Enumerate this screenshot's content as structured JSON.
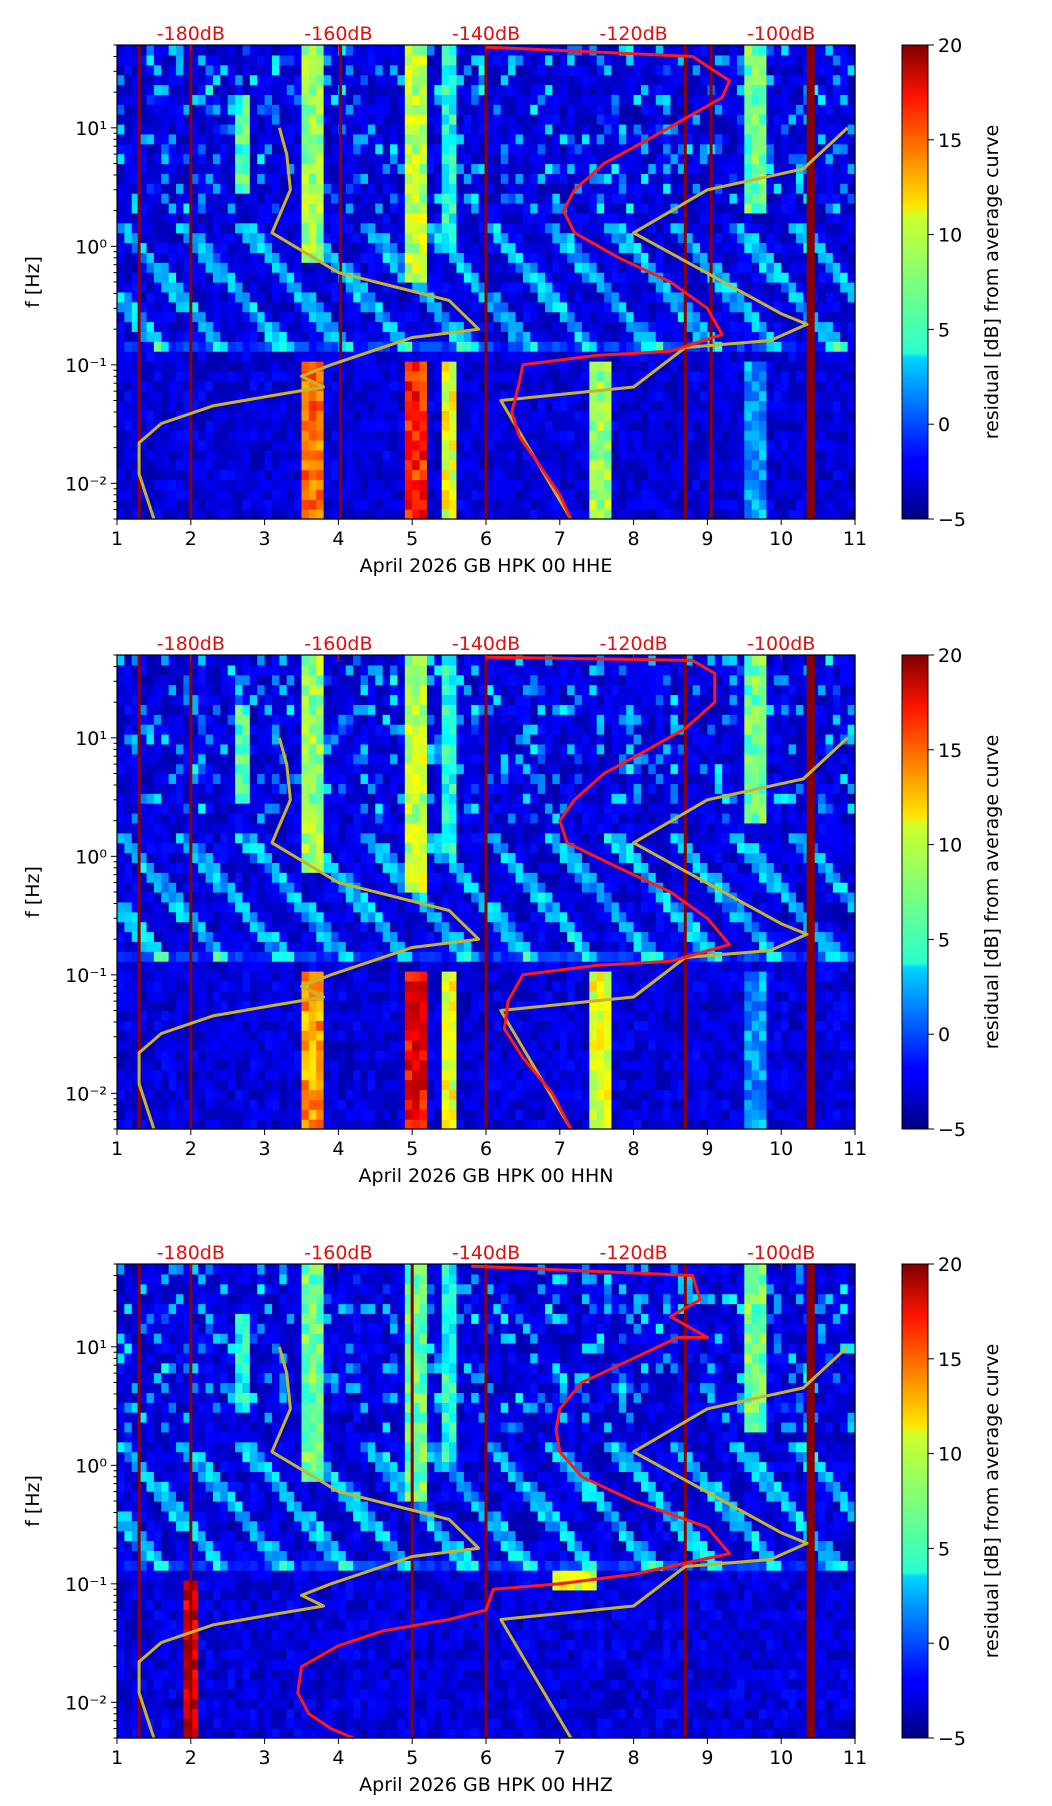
{
  "figure": {
    "colorbar_label": "residual [dB] from average curve",
    "colorbar_ticks": [
      -5,
      0,
      5,
      10,
      15,
      20
    ],
    "colorbar_range": [
      -5,
      20
    ],
    "ylabel": "f [Hz]",
    "y_ticks": [
      {
        "value": 0.01,
        "label": "10⁻²"
      },
      {
        "value": 0.1,
        "label": "10⁻¹"
      },
      {
        "value": 1,
        "label": "10⁰"
      },
      {
        "value": 10,
        "label": "10¹"
      }
    ],
    "x_ticks": [
      1,
      2,
      3,
      4,
      5,
      6,
      7,
      8,
      9,
      10,
      11
    ],
    "db_scale": [
      {
        "x": 2,
        "label": "-180dB"
      },
      {
        "x": 4,
        "label": "-160dB"
      },
      {
        "x": 6,
        "label": "-140dB"
      },
      {
        "x": 8,
        "label": "-120dB"
      },
      {
        "x": 10,
        "label": "-100dB"
      }
    ],
    "xlim": [
      1,
      11
    ],
    "ylim": [
      0.005,
      50
    ]
  },
  "chart_data": [
    {
      "type": "heatmap",
      "title": "April 2026 GB HPK 00 HHE",
      "xlabel": "April 2026 GB HPK 00 HHE",
      "ylabel": "f [Hz]",
      "gap_days": [
        1.3,
        2.0,
        4.03,
        6.0,
        8.7,
        9.05,
        10.4
      ],
      "bands": [
        {
          "x": 2.7,
          "w": 0.15,
          "fmin": 3,
          "fmax": 20,
          "v": 8
        },
        {
          "x": 3.65,
          "w": 0.3,
          "fmin": 0.8,
          "fmax": 50,
          "v": 10
        },
        {
          "x": 3.65,
          "w": 0.3,
          "fmin": 0.005,
          "fmax": 0.1,
          "v": 16
        },
        {
          "x": 5.0,
          "w": 0.3,
          "fmin": 0.5,
          "fmax": 50,
          "v": 11
        },
        {
          "x": 5.0,
          "w": 0.3,
          "fmin": 0.005,
          "fmax": 0.1,
          "v": 18
        },
        {
          "x": 5.5,
          "w": 0.3,
          "fmin": 0.005,
          "fmax": 0.1,
          "v": 12
        },
        {
          "x": 5.5,
          "w": 0.3,
          "fmin": 1,
          "fmax": 50,
          "v": 7
        },
        {
          "x": 7.55,
          "w": 0.25,
          "fmin": 0.005,
          "fmax": 0.1,
          "v": 10
        },
        {
          "x": 9.65,
          "w": 0.25,
          "fmin": 2,
          "fmax": 50,
          "v": 9
        },
        {
          "x": 9.65,
          "w": 0.3,
          "fmin": 0.005,
          "fmax": 0.1,
          "v": 4
        }
      ],
      "max_curve": [
        [
          7.15,
          0.005
        ],
        [
          7.0,
          0.008
        ],
        [
          6.7,
          0.015
        ],
        [
          6.45,
          0.025
        ],
        [
          6.35,
          0.04
        ],
        [
          6.45,
          0.07
        ],
        [
          6.5,
          0.1
        ],
        [
          7.5,
          0.12
        ],
        [
          8.5,
          0.13
        ],
        [
          9.2,
          0.18
        ],
        [
          9.0,
          0.3
        ],
        [
          8.5,
          0.5
        ],
        [
          7.8,
          0.8
        ],
        [
          7.2,
          1.3
        ],
        [
          7.05,
          2
        ],
        [
          7.2,
          3
        ],
        [
          7.6,
          5
        ],
        [
          8.2,
          8
        ],
        [
          8.7,
          12
        ],
        [
          9.2,
          18
        ],
        [
          9.3,
          25
        ],
        [
          8.8,
          40
        ],
        [
          6.0,
          48
        ]
      ],
      "min_curve": [
        [
          7.15,
          0.005
        ],
        [
          6.2,
          0.05
        ],
        [
          8.0,
          0.065
        ],
        [
          8.7,
          0.14
        ],
        [
          9.85,
          0.16
        ],
        [
          10.35,
          0.22
        ],
        [
          10.0,
          0.27
        ],
        [
          8.0,
          1.3
        ],
        [
          9.0,
          3
        ],
        [
          10.3,
          4.5
        ],
        [
          10.9,
          10
        ]
      ],
      "nlnm_curve": [
        [
          1.5,
          0.005
        ],
        [
          1.3,
          0.012
        ],
        [
          1.3,
          0.022
        ],
        [
          1.6,
          0.032
        ],
        [
          2.3,
          0.045
        ],
        [
          3.1,
          0.055
        ],
        [
          3.8,
          0.065
        ],
        [
          3.5,
          0.08
        ],
        [
          3.9,
          0.1
        ],
        [
          5.0,
          0.17
        ],
        [
          5.9,
          0.2
        ],
        [
          5.5,
          0.35
        ],
        [
          4.0,
          0.6
        ],
        [
          3.1,
          1.3
        ],
        [
          3.35,
          3
        ],
        [
          3.3,
          6
        ],
        [
          3.2,
          10
        ]
      ]
    },
    {
      "type": "heatmap",
      "title": "April 2026 GB HPK 00 HHN",
      "xlabel": "April 2026 GB HPK 00 HHN",
      "ylabel": "f [Hz]",
      "gap_days": [
        1.3,
        2.0,
        6.0,
        8.7,
        10.4
      ],
      "bands": [
        {
          "x": 2.7,
          "w": 0.15,
          "fmin": 3,
          "fmax": 20,
          "v": 8
        },
        {
          "x": 3.65,
          "w": 0.3,
          "fmin": 0.8,
          "fmax": 50,
          "v": 10
        },
        {
          "x": 3.65,
          "w": 0.3,
          "fmin": 0.005,
          "fmax": 0.1,
          "v": 15
        },
        {
          "x": 5.0,
          "w": 0.3,
          "fmin": 0.5,
          "fmax": 50,
          "v": 11
        },
        {
          "x": 5.0,
          "w": 0.3,
          "fmin": 0.005,
          "fmax": 0.1,
          "v": 19
        },
        {
          "x": 5.5,
          "w": 0.3,
          "fmin": 0.005,
          "fmax": 0.1,
          "v": 12
        },
        {
          "x": 5.5,
          "w": 0.3,
          "fmin": 1,
          "fmax": 50,
          "v": 7
        },
        {
          "x": 7.55,
          "w": 0.25,
          "fmin": 0.005,
          "fmax": 0.1,
          "v": 12
        },
        {
          "x": 9.65,
          "w": 0.25,
          "fmin": 2,
          "fmax": 50,
          "v": 9
        },
        {
          "x": 9.65,
          "w": 0.3,
          "fmin": 0.005,
          "fmax": 0.1,
          "v": 4
        }
      ],
      "max_curve": [
        [
          7.15,
          0.005
        ],
        [
          6.9,
          0.01
        ],
        [
          6.5,
          0.02
        ],
        [
          6.25,
          0.035
        ],
        [
          6.3,
          0.06
        ],
        [
          6.5,
          0.1
        ],
        [
          7.5,
          0.12
        ],
        [
          8.5,
          0.13
        ],
        [
          9.3,
          0.18
        ],
        [
          9.0,
          0.3
        ],
        [
          8.5,
          0.5
        ],
        [
          7.8,
          0.8
        ],
        [
          7.1,
          1.3
        ],
        [
          7.0,
          2
        ],
        [
          7.2,
          3
        ],
        [
          7.6,
          5
        ],
        [
          8.2,
          8
        ],
        [
          8.7,
          12
        ],
        [
          9.1,
          20
        ],
        [
          9.1,
          35
        ],
        [
          8.8,
          45
        ],
        [
          6.0,
          48
        ]
      ],
      "min_curve": [
        [
          7.15,
          0.005
        ],
        [
          6.2,
          0.05
        ],
        [
          8.0,
          0.065
        ],
        [
          8.7,
          0.14
        ],
        [
          9.85,
          0.16
        ],
        [
          10.35,
          0.22
        ],
        [
          10.0,
          0.27
        ],
        [
          8.0,
          1.3
        ],
        [
          9.0,
          3
        ],
        [
          10.3,
          4.5
        ],
        [
          10.9,
          10
        ]
      ],
      "nlnm_curve": [
        [
          1.5,
          0.005
        ],
        [
          1.3,
          0.012
        ],
        [
          1.3,
          0.022
        ],
        [
          1.6,
          0.032
        ],
        [
          2.3,
          0.045
        ],
        [
          3.1,
          0.055
        ],
        [
          3.8,
          0.065
        ],
        [
          3.5,
          0.08
        ],
        [
          3.9,
          0.1
        ],
        [
          5.0,
          0.17
        ],
        [
          5.9,
          0.2
        ],
        [
          5.5,
          0.35
        ],
        [
          4.0,
          0.6
        ],
        [
          3.1,
          1.3
        ],
        [
          3.35,
          3
        ],
        [
          3.3,
          6
        ],
        [
          3.2,
          10
        ]
      ]
    },
    {
      "type": "heatmap",
      "title": "April 2026 GB HPK 00 HHZ",
      "xlabel": "April 2026 GB HPK 00 HHZ",
      "ylabel": "f [Hz]",
      "gap_days": [
        1.3,
        2.0,
        5.0,
        6.0,
        8.7,
        10.4
      ],
      "bands": [
        {
          "x": 2.05,
          "w": 0.2,
          "fmin": 0.005,
          "fmax": 0.1,
          "v": 20
        },
        {
          "x": 2.7,
          "w": 0.15,
          "fmin": 3,
          "fmax": 20,
          "v": 7
        },
        {
          "x": 3.65,
          "w": 0.3,
          "fmin": 0.8,
          "fmax": 50,
          "v": 9
        },
        {
          "x": 5.0,
          "w": 0.3,
          "fmin": 0.5,
          "fmax": 50,
          "v": 9
        },
        {
          "x": 5.5,
          "w": 0.3,
          "fmin": 1,
          "fmax": 50,
          "v": 7
        },
        {
          "x": 9.65,
          "w": 0.25,
          "fmin": 2,
          "fmax": 50,
          "v": 9
        },
        {
          "x": 7.2,
          "w": 0.6,
          "fmin": 0.09,
          "fmax": 0.13,
          "v": 12
        }
      ],
      "max_curve": [
        [
          4.2,
          0.005
        ],
        [
          3.9,
          0.006
        ],
        [
          3.6,
          0.008
        ],
        [
          3.45,
          0.012
        ],
        [
          3.5,
          0.02
        ],
        [
          4.0,
          0.03
        ],
        [
          4.6,
          0.04
        ],
        [
          5.5,
          0.05
        ],
        [
          6.0,
          0.06
        ],
        [
          6.1,
          0.09
        ],
        [
          7.0,
          0.1
        ],
        [
          8.0,
          0.12
        ],
        [
          9.3,
          0.18
        ],
        [
          9.0,
          0.3
        ],
        [
          8.0,
          0.5
        ],
        [
          7.3,
          0.8
        ],
        [
          7.0,
          1.3
        ],
        [
          6.95,
          2
        ],
        [
          7.0,
          3
        ],
        [
          7.3,
          5
        ],
        [
          8.0,
          8
        ],
        [
          8.6,
          12
        ],
        [
          9.0,
          12
        ],
        [
          8.5,
          18
        ],
        [
          8.9,
          25
        ],
        [
          8.8,
          40
        ],
        [
          5.8,
          48
        ]
      ],
      "min_curve": [
        [
          7.15,
          0.005
        ],
        [
          6.2,
          0.05
        ],
        [
          8.0,
          0.065
        ],
        [
          8.7,
          0.14
        ],
        [
          9.85,
          0.16
        ],
        [
          10.35,
          0.22
        ],
        [
          10.0,
          0.27
        ],
        [
          8.0,
          1.3
        ],
        [
          9.0,
          3
        ],
        [
          10.3,
          4.5
        ],
        [
          10.9,
          10
        ]
      ],
      "nlnm_curve": [
        [
          1.5,
          0.005
        ],
        [
          1.3,
          0.012
        ],
        [
          1.3,
          0.022
        ],
        [
          1.6,
          0.032
        ],
        [
          2.3,
          0.045
        ],
        [
          3.1,
          0.055
        ],
        [
          3.8,
          0.065
        ],
        [
          3.5,
          0.08
        ],
        [
          3.9,
          0.1
        ],
        [
          5.0,
          0.17
        ],
        [
          5.9,
          0.2
        ],
        [
          5.5,
          0.35
        ],
        [
          4.0,
          0.6
        ],
        [
          3.1,
          1.3
        ],
        [
          3.35,
          3
        ],
        [
          3.3,
          6
        ],
        [
          3.2,
          10
        ]
      ]
    }
  ]
}
